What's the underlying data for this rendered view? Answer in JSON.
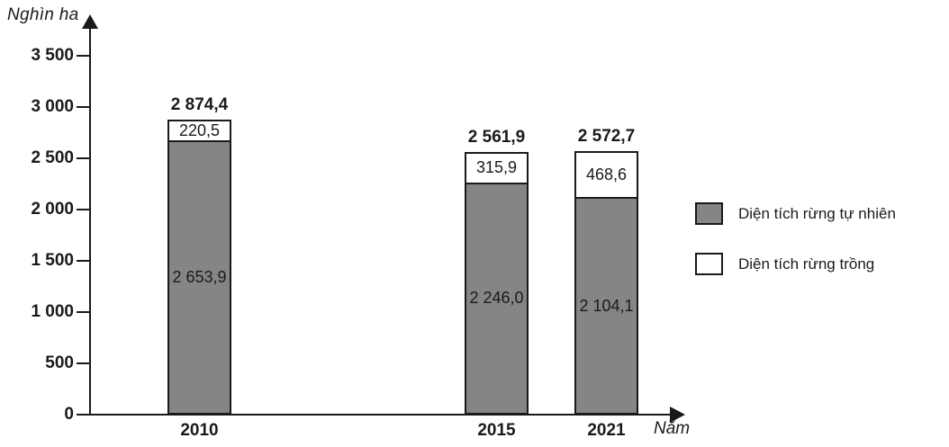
{
  "chart_data": {
    "type": "bar",
    "stacked": true,
    "title": "",
    "ylabel": "Nghìn ha",
    "xlabel": "Năm",
    "categories": [
      "2010",
      "2015",
      "2021"
    ],
    "series": [
      {
        "name": "Diện tích rừng tự nhiên",
        "color": "#858585",
        "values": [
          2653.9,
          2246.0,
          2104.1
        ],
        "value_labels": [
          "2 653,9",
          "2 246,0",
          "2 104,1"
        ]
      },
      {
        "name": "Diện tích rừng trồng",
        "color": "#ffffff",
        "values": [
          220.5,
          315.9,
          468.6
        ],
        "value_labels": [
          "220,5",
          "315,9",
          "468,6"
        ]
      }
    ],
    "totals": [
      2874.4,
      2561.9,
      2572.7
    ],
    "total_labels": [
      "2 874,4",
      "2 561,9",
      "2 572,7"
    ],
    "ylim": [
      0,
      3500
    ],
    "yticks": [
      0,
      500,
      1000,
      1500,
      2000,
      2500,
      3000,
      3500
    ],
    "ytick_labels": [
      "0",
      "500",
      "1 000",
      "1 500",
      "2 000",
      "2 500",
      "3 000",
      "3 500"
    ],
    "grid": false,
    "legend_position": "right"
  },
  "colors": {
    "axis": "#1a1a1a",
    "text": "#1a1a1a",
    "bar_outline": "#1a1a1a"
  }
}
